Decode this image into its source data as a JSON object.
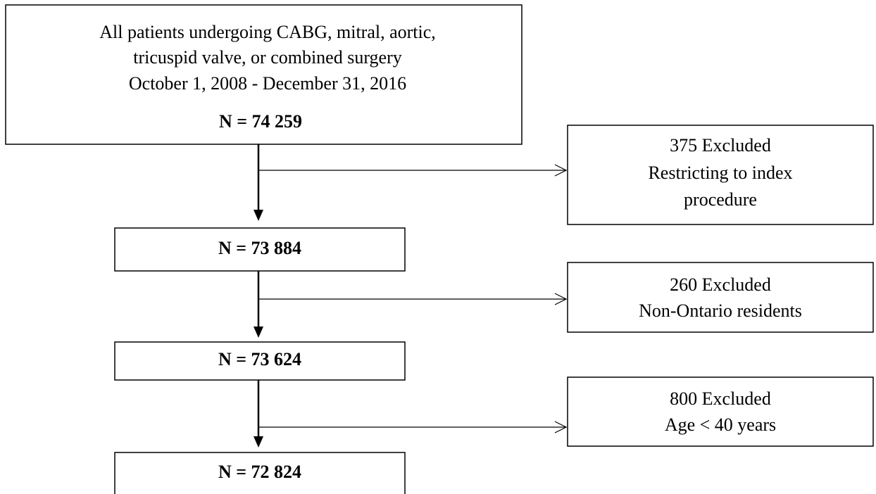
{
  "main_boxes": [
    {
      "lines": [
        "All patients undergoing  CABG, mitral, aortic,",
        "tricuspid valve, or combined surgery",
        "October  1, 2008 - December 31, 2016"
      ],
      "count": "N = 74 259"
    },
    {
      "count": "N = 73 884"
    },
    {
      "count": "N = 73 624"
    },
    {
      "count": "N = 72 824"
    }
  ],
  "exclusions": [
    {
      "lines": [
        "375 Excluded",
        "Restricting to index",
        "procedure"
      ]
    },
    {
      "lines": [
        "260 Excluded",
        "Non-Ontario residents"
      ]
    },
    {
      "lines": [
        "800 Excluded",
        "Age < 40 years"
      ]
    }
  ]
}
